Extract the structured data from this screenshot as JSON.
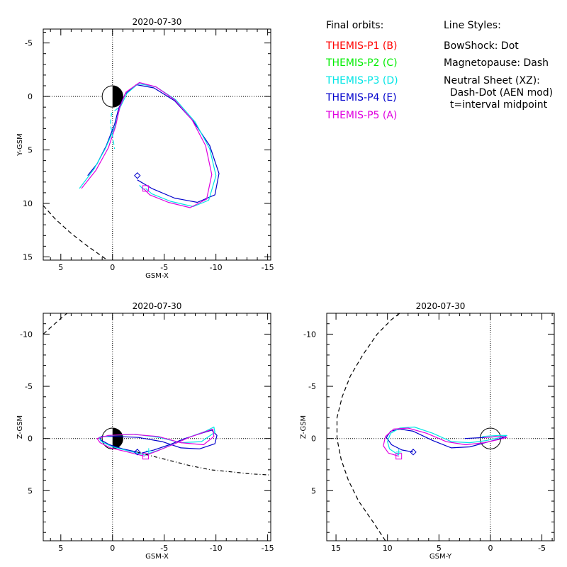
{
  "legend": {
    "final_orbits_title": "Final orbits:",
    "probes": [
      {
        "label": "THEMIS-P1 (B)",
        "color": "#ff0000"
      },
      {
        "label": "THEMIS-P2 (C)",
        "color": "#00ee00"
      },
      {
        "label": "THEMIS-P3 (D)",
        "color": "#00e5e5"
      },
      {
        "label": "THEMIS-P4 (E)",
        "color": "#0000cc"
      },
      {
        "label": "THEMIS-P5 (A)",
        "color": "#e000e0"
      }
    ],
    "line_styles_title": "Line Styles:",
    "line_styles": [
      "BowShock: Dot",
      "Magnetopause: Dash",
      "Neutral Sheet (XZ):",
      "  Dash-Dot (AEN mod)",
      "  t=interval midpoint"
    ]
  },
  "chart_data": [
    {
      "type": "line",
      "panel": "xy",
      "title": "2020-07-30",
      "xlabel": "GSM-X",
      "ylabel": "Y-GSM",
      "xlim": [
        6.7,
        -15.3
      ],
      "ylim": [
        -6.3,
        15.3
      ],
      "xticks": [
        5,
        0,
        -5,
        -10,
        -15
      ],
      "xtick_labels": [
        "5",
        "0",
        "-5",
        "-10",
        "-15"
      ],
      "yticks": [
        -5,
        0,
        5,
        10,
        15
      ],
      "ytick_labels": [
        "-5",
        "0",
        "5",
        "10",
        "15"
      ],
      "series": [
        {
          "color": "#0000cc",
          "style": "solid",
          "points": [
            [
              2.4,
              7.4
            ],
            [
              1.5,
              6.3
            ],
            [
              0.6,
              4.6
            ],
            [
              -0.2,
              2.6
            ],
            [
              -0.6,
              1.1
            ],
            [
              -1.2,
              -0.2
            ],
            [
              -2.3,
              -1.1
            ],
            [
              -4.0,
              -0.8
            ],
            [
              -6.0,
              0.4
            ],
            [
              -7.8,
              2.3
            ],
            [
              -9.4,
              4.6
            ],
            [
              -10.3,
              7.2
            ],
            [
              -9.9,
              9.2
            ],
            [
              -8.2,
              9.9
            ],
            [
              -6.0,
              9.5
            ],
            [
              -3.8,
              8.6
            ],
            [
              -2.4,
              7.8
            ]
          ]
        },
        {
          "color": "#00e5e5",
          "style": "solid",
          "points": [
            [
              3.2,
              8.6
            ],
            [
              1.8,
              6.8
            ],
            [
              0.7,
              4.9
            ],
            [
              -0.2,
              2.9
            ],
            [
              -0.7,
              1.1
            ],
            [
              -1.4,
              -0.3
            ],
            [
              -2.5,
              -1.2
            ],
            [
              -4.2,
              -0.9
            ],
            [
              -6.1,
              0.3
            ],
            [
              -8.0,
              2.4
            ],
            [
              -9.4,
              4.9
            ],
            [
              -10.0,
              7.4
            ],
            [
              -9.3,
              9.7
            ],
            [
              -7.8,
              10.3
            ],
            [
              -5.6,
              9.8
            ],
            [
              -3.8,
              9.1
            ],
            [
              -3.2,
              8.6
            ]
          ]
        },
        {
          "color": "#e000e0",
          "style": "solid",
          "points": [
            [
              3.0,
              8.6
            ],
            [
              1.6,
              6.9
            ],
            [
              0.4,
              4.8
            ],
            [
              -0.3,
              2.8
            ],
            [
              -0.7,
              1.0
            ],
            [
              -1.3,
              -0.4
            ],
            [
              -2.6,
              -1.3
            ],
            [
              -4.2,
              -0.9
            ],
            [
              -6.0,
              0.3
            ],
            [
              -7.7,
              2.2
            ],
            [
              -9.0,
              4.6
            ],
            [
              -9.6,
              7.3
            ],
            [
              -9.1,
              9.6
            ],
            [
              -7.5,
              10.4
            ],
            [
              -5.4,
              9.9
            ],
            [
              -3.6,
              9.2
            ],
            [
              -3.0,
              8.6
            ]
          ]
        },
        {
          "color": "#00e5e5",
          "style": "dash",
          "points": [
            [
              -0.5,
              1.1
            ],
            [
              0.1,
              1.6
            ],
            [
              0.2,
              2.6
            ],
            [
              0.0,
              3.7
            ],
            [
              -0.2,
              4.9
            ]
          ]
        },
        {
          "color": "#00e5e5",
          "style": "solid",
          "points": [
            [
              -3.0,
              8.7
            ],
            [
              -2.6,
              8.3
            ]
          ]
        },
        {
          "color": "#000000",
          "style": "dash",
          "points": [
            [
              6.7,
              10.2
            ],
            [
              5.5,
              11.5
            ],
            [
              4.0,
              12.8
            ],
            [
              2.4,
              14.0
            ],
            [
              0.5,
              15.3
            ]
          ]
        }
      ],
      "markers": [
        {
          "shape": "diamond",
          "color": "#0000cc",
          "x": -2.4,
          "y": 7.4
        },
        {
          "shape": "square",
          "color": "#e000e0",
          "x": -3.2,
          "y": 8.6
        }
      ]
    },
    {
      "type": "line",
      "panel": "xz",
      "title": "2020-07-30",
      "xlabel": "GSM-X",
      "ylabel": "Z-GSM",
      "xlim": [
        6.7,
        -15.3
      ],
      "ylim": [
        -12.0,
        9.8
      ],
      "xticks": [
        5,
        0,
        -5,
        -10,
        -15
      ],
      "xtick_labels": [
        "5",
        "0",
        "-5",
        "-10",
        "-15"
      ],
      "yticks": [
        5,
        0,
        -5,
        -10
      ],
      "ytick_labels": [
        "5",
        "0",
        "-5",
        "-10"
      ],
      "series": [
        {
          "color": "#0000cc",
          "style": "solid",
          "points": [
            [
              -2.4,
              1.3
            ],
            [
              -1.0,
              1.0
            ],
            [
              0.3,
              0.6
            ],
            [
              1.2,
              0.1
            ],
            [
              1.1,
              -0.2
            ],
            [
              -0.3,
              -0.2
            ],
            [
              -2.5,
              -0.1
            ],
            [
              -4.8,
              0.3
            ],
            [
              -6.6,
              0.9
            ],
            [
              -8.4,
              1.0
            ],
            [
              -9.9,
              0.5
            ],
            [
              -10.1,
              -0.3
            ],
            [
              -9.6,
              -0.8
            ],
            [
              -8.6,
              -0.5
            ],
            [
              -7.0,
              0.0
            ],
            [
              -5.5,
              0.6
            ],
            [
              -4.0,
              1.1
            ],
            [
              -2.8,
              1.4
            ]
          ]
        },
        {
          "color": "#00e5e5",
          "style": "solid",
          "points": [
            [
              -3.2,
              1.6
            ],
            [
              -1.6,
              1.2
            ],
            [
              0.0,
              0.8
            ],
            [
              1.1,
              0.3
            ],
            [
              1.3,
              -0.1
            ],
            [
              0.1,
              -0.3
            ],
            [
              -2.2,
              -0.4
            ],
            [
              -4.5,
              -0.1
            ],
            [
              -6.6,
              0.4
            ],
            [
              -8.6,
              0.3
            ],
            [
              -9.9,
              -0.6
            ],
            [
              -9.8,
              -1.1
            ],
            [
              -9.0,
              -0.7
            ],
            [
              -7.6,
              -0.2
            ],
            [
              -6.0,
              0.5
            ],
            [
              -4.5,
              1.1
            ],
            [
              -3.3,
              1.5
            ]
          ]
        },
        {
          "color": "#e000e0",
          "style": "solid",
          "points": [
            [
              -3.1,
              1.7
            ],
            [
              -1.5,
              1.3
            ],
            [
              0.2,
              0.9
            ],
            [
              1.2,
              0.4
            ],
            [
              1.5,
              0.0
            ],
            [
              0.4,
              -0.3
            ],
            [
              -1.9,
              -0.4
            ],
            [
              -4.4,
              -0.2
            ],
            [
              -6.6,
              0.4
            ],
            [
              -8.8,
              0.6
            ],
            [
              -9.8,
              -0.2
            ],
            [
              -9.7,
              -0.9
            ],
            [
              -8.8,
              -0.6
            ],
            [
              -7.4,
              -0.1
            ],
            [
              -5.8,
              0.6
            ],
            [
              -4.3,
              1.2
            ],
            [
              -3.2,
              1.6
            ]
          ]
        },
        {
          "color": "#000000",
          "style": "dashdot",
          "points": [
            [
              -2.4,
              1.3
            ],
            [
              -3.5,
              1.6
            ],
            [
              -5.5,
              2.1
            ],
            [
              -7.5,
              2.6
            ],
            [
              -9.5,
              3.0
            ],
            [
              -11.5,
              3.2
            ],
            [
              -13.5,
              3.4
            ],
            [
              -15.3,
              3.5
            ]
          ]
        },
        {
          "color": "#000000",
          "style": "dash",
          "points": [
            [
              6.7,
              -10.0
            ],
            [
              5.8,
              -10.8
            ],
            [
              4.9,
              -11.6
            ],
            [
              4.4,
              -12.0
            ]
          ]
        }
      ],
      "markers": [
        {
          "shape": "diamond",
          "color": "#0000cc",
          "x": -2.4,
          "y": 1.3
        },
        {
          "shape": "square",
          "color": "#e000e0",
          "x": -3.2,
          "y": 1.7
        },
        {
          "shape": "plus",
          "color": "#00e5e5",
          "x": -3.5,
          "y": 1.2
        }
      ]
    },
    {
      "type": "line",
      "panel": "yz",
      "title": "2020-07-30",
      "xlabel": "GSM-Y",
      "ylabel": "Z-GSM",
      "xlim": [
        15.9,
        -6.2
      ],
      "ylim": [
        -12.0,
        9.8
      ],
      "xticks": [
        15,
        10,
        5,
        0,
        -5
      ],
      "xtick_labels": [
        "15",
        "10",
        "5",
        "0",
        "-5"
      ],
      "yticks": [
        5,
        0,
        -5,
        -10
      ],
      "ytick_labels": [
        "5",
        "0",
        "-5",
        "-10"
      ],
      "series": [
        {
          "color": "#0000cc",
          "style": "solid",
          "points": [
            [
              7.5,
              1.3
            ],
            [
              8.6,
              1.1
            ],
            [
              9.6,
              0.6
            ],
            [
              10.1,
              -0.1
            ],
            [
              9.7,
              -0.7
            ],
            [
              8.8,
              -0.9
            ],
            [
              7.5,
              -0.7
            ],
            [
              5.6,
              0.2
            ],
            [
              3.8,
              0.9
            ],
            [
              2.0,
              0.8
            ],
            [
              0.5,
              0.4
            ],
            [
              -1.0,
              0.0
            ],
            [
              -1.5,
              -0.2
            ],
            [
              -1.0,
              -0.2
            ],
            [
              0.5,
              -0.1
            ],
            [
              2.5,
              0.0
            ]
          ]
        },
        {
          "color": "#00e5e5",
          "style": "solid",
          "points": [
            [
              8.9,
              1.6
            ],
            [
              9.8,
              1.0
            ],
            [
              10.0,
              0.3
            ],
            [
              9.7,
              -0.5
            ],
            [
              8.8,
              -1.0
            ],
            [
              7.4,
              -1.1
            ],
            [
              5.6,
              -0.5
            ],
            [
              3.8,
              0.3
            ],
            [
              2.0,
              0.4
            ],
            [
              0.4,
              0.2
            ],
            [
              -1.0,
              -0.1
            ],
            [
              -1.6,
              -0.3
            ],
            [
              -0.8,
              -0.3
            ],
            [
              0.8,
              -0.2
            ]
          ]
        },
        {
          "color": "#e000e0",
          "style": "solid",
          "points": [
            [
              8.9,
              1.7
            ],
            [
              9.9,
              1.4
            ],
            [
              10.4,
              0.7
            ],
            [
              10.2,
              -0.2
            ],
            [
              9.4,
              -0.9
            ],
            [
              8.0,
              -1.0
            ],
            [
              6.2,
              -0.5
            ],
            [
              4.3,
              0.3
            ],
            [
              2.4,
              0.6
            ],
            [
              0.6,
              0.4
            ],
            [
              -0.8,
              0.1
            ],
            [
              -1.6,
              -0.1
            ],
            [
              -1.0,
              -0.2
            ],
            [
              0.6,
              -0.1
            ]
          ]
        },
        {
          "color": "#000000",
          "style": "dash",
          "points": [
            [
              10.2,
              9.8
            ],
            [
              11.4,
              8.0
            ],
            [
              12.8,
              6.0
            ],
            [
              13.8,
              4.0
            ],
            [
              14.5,
              2.0
            ],
            [
              14.9,
              0.0
            ],
            [
              14.9,
              -2.0
            ],
            [
              14.4,
              -4.0
            ],
            [
              13.6,
              -6.0
            ],
            [
              12.4,
              -8.0
            ],
            [
              11.0,
              -10.0
            ],
            [
              9.6,
              -11.4
            ],
            [
              8.8,
              -12.0
            ]
          ]
        }
      ],
      "markers": [
        {
          "shape": "diamond",
          "color": "#0000cc",
          "x": 7.5,
          "y": 1.3
        },
        {
          "shape": "square",
          "color": "#e000e0",
          "x": 8.9,
          "y": 1.7
        },
        {
          "shape": "plus",
          "color": "#00e5e5",
          "x": 8.9,
          "y": 1.3
        }
      ]
    }
  ]
}
